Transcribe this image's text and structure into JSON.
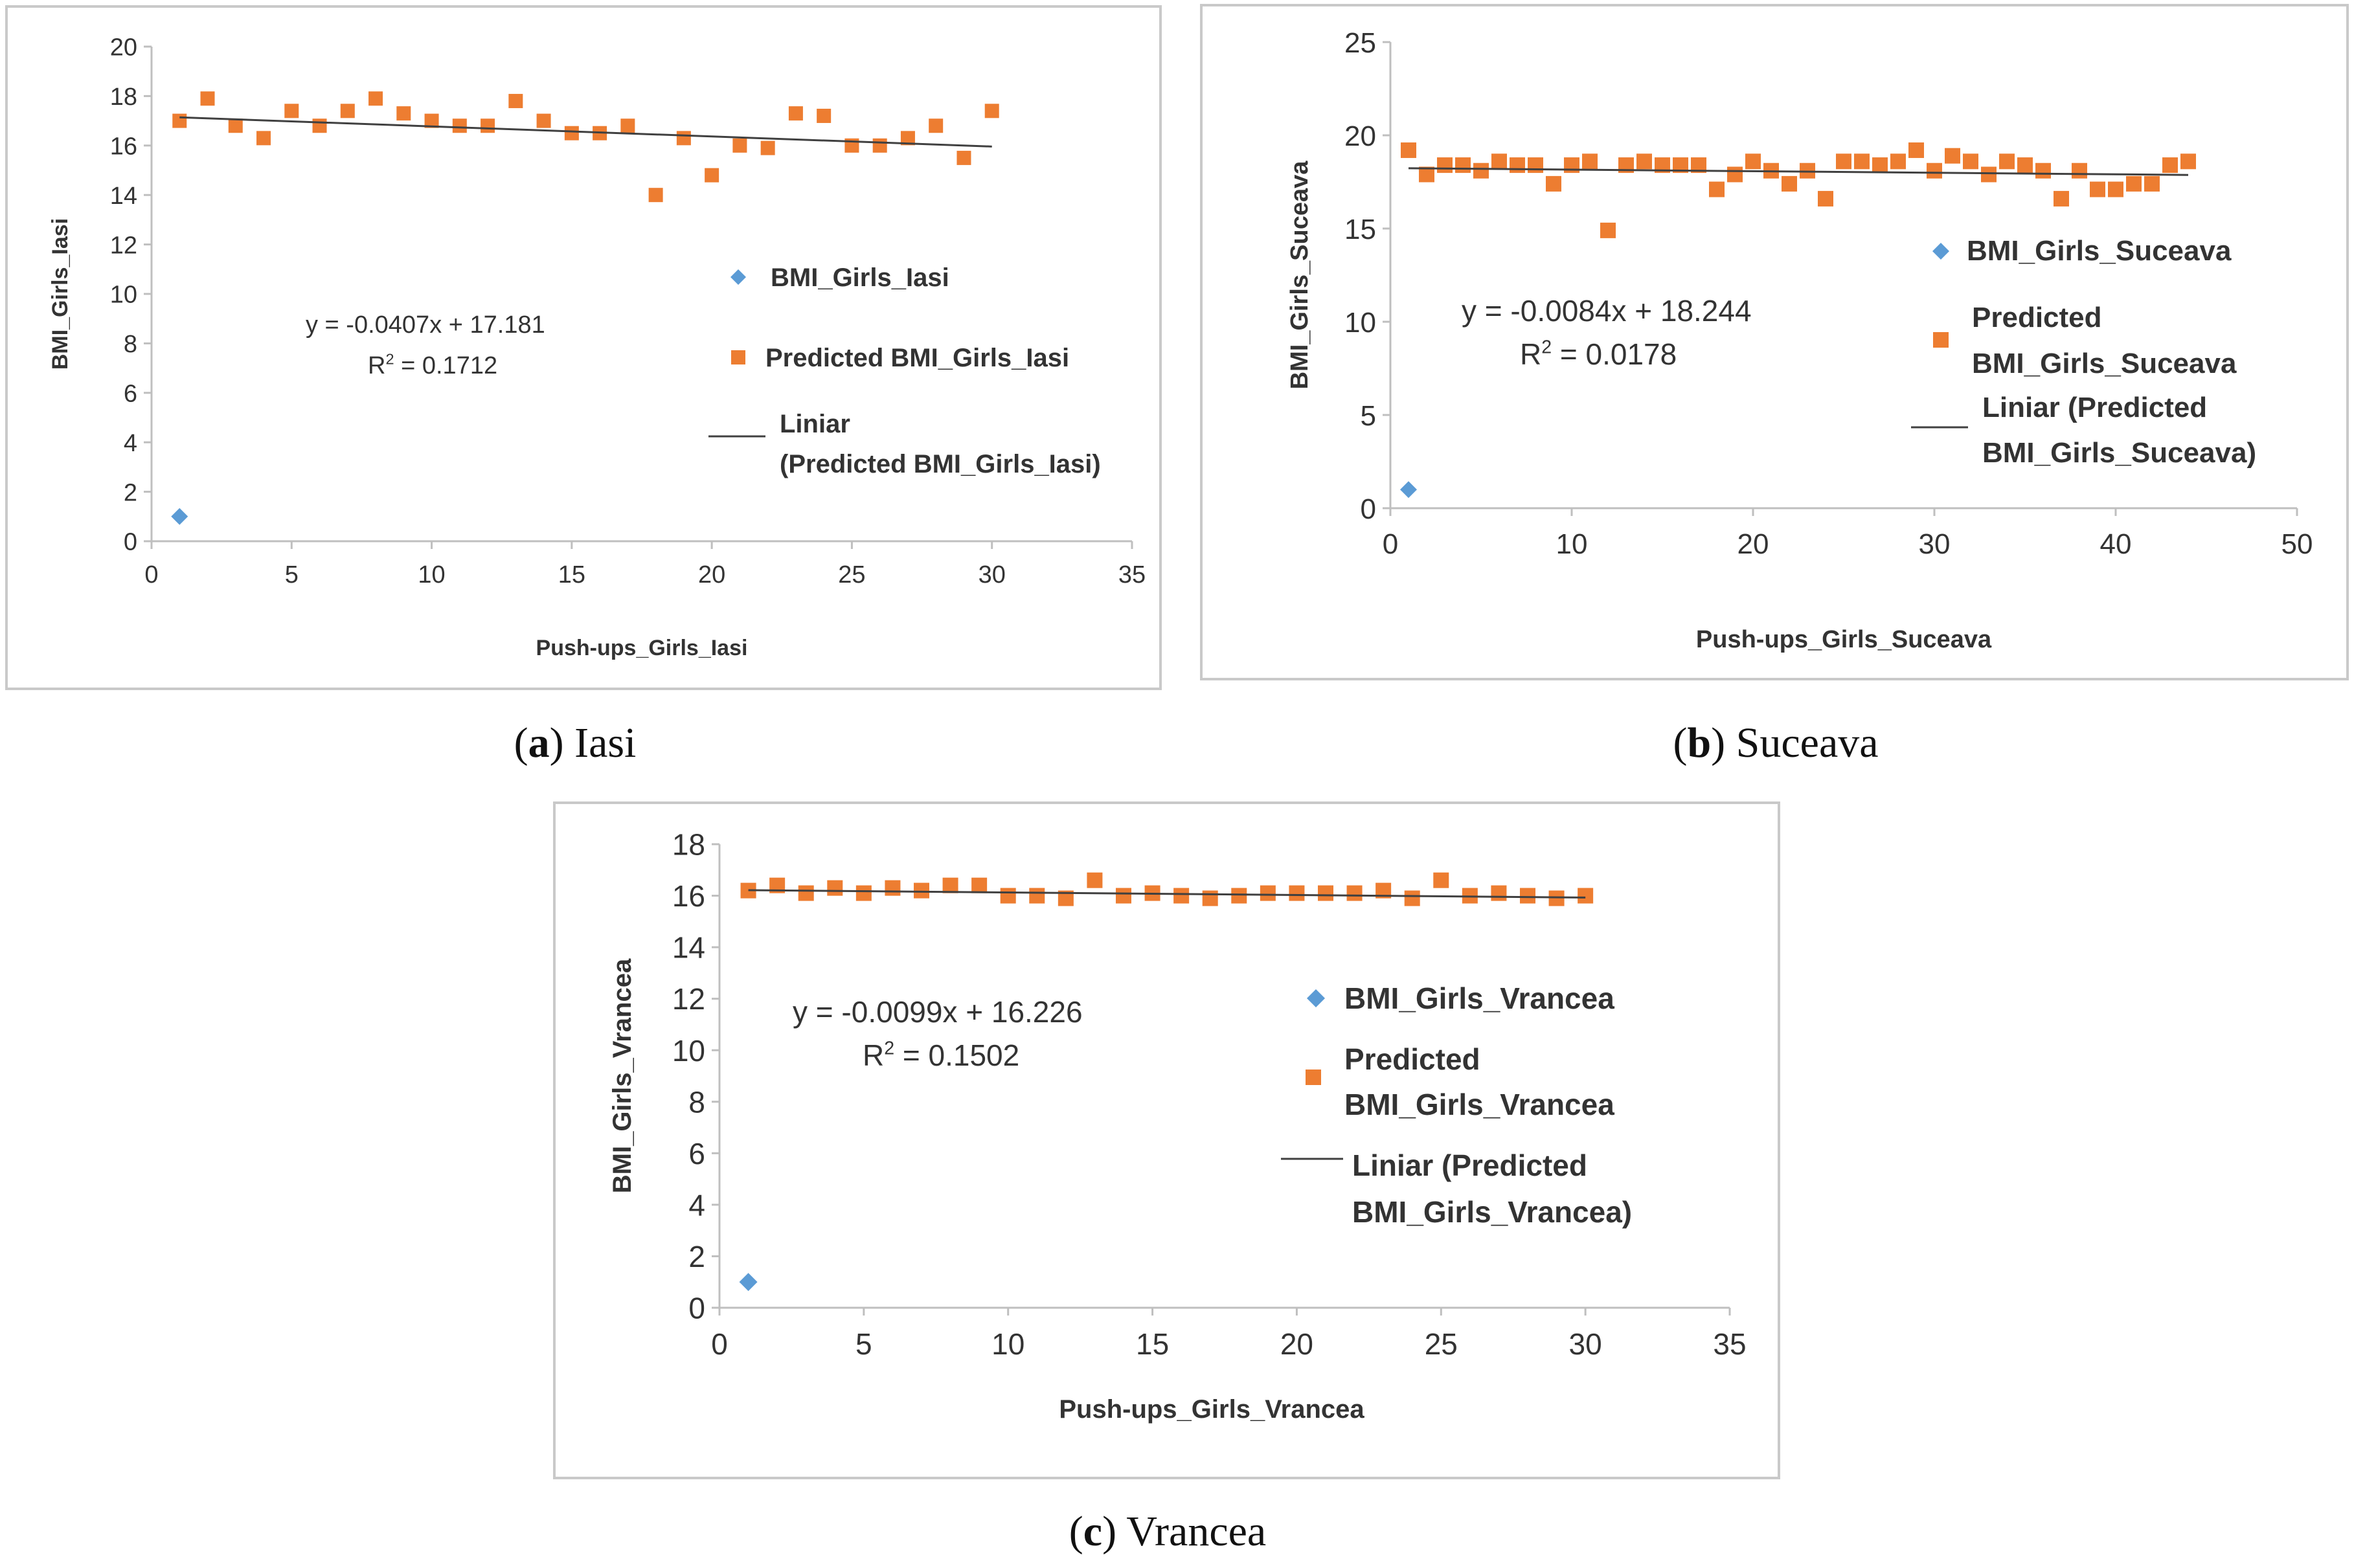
{
  "chart_data": [
    {
      "type": "scatter",
      "panel_id": "a",
      "caption_letter": "a",
      "caption_text": "Iasi",
      "xlabel": "Push-ups_Girls_Iasi",
      "ylabel": "BMI_Girls_Iasi",
      "xlim": [
        0,
        35
      ],
      "ylim": [
        0,
        20
      ],
      "xticks": [
        0,
        5,
        10,
        15,
        20,
        25,
        30,
        35
      ],
      "yticks": [
        0,
        2,
        4,
        6,
        8,
        10,
        12,
        14,
        16,
        18,
        20
      ],
      "grid": false,
      "equation": "y = -0.0407x + 17.181",
      "r2": "R² = 0.1712",
      "legend": [
        "BMI_Girls_Iasi",
        "Predicted BMI_Girls_Iasi",
        "Liniar",
        "(Predicted BMI_Girls_Iasi)"
      ],
      "series": [
        {
          "name": "BMI_Girls_Iasi",
          "marker": "diamond",
          "color": "#5b9bd5",
          "points": [
            [
              1,
              1
            ]
          ]
        },
        {
          "name": "Predicted BMI_Girls_Iasi",
          "marker": "square",
          "color": "#ed7d31",
          "points": [
            [
              1,
              17
            ],
            [
              2,
              17.9
            ],
            [
              3,
              16.8
            ],
            [
              4,
              16.3
            ],
            [
              5,
              17.4
            ],
            [
              6,
              16.8
            ],
            [
              7,
              17.4
            ],
            [
              8,
              17.9
            ],
            [
              9,
              17.3
            ],
            [
              10,
              17
            ],
            [
              11,
              16.8
            ],
            [
              12,
              16.8
            ],
            [
              13,
              17.8
            ],
            [
              14,
              17
            ],
            [
              15,
              16.5
            ],
            [
              16,
              16.5
            ],
            [
              17,
              16.8
            ],
            [
              18,
              14
            ],
            [
              19,
              16.3
            ],
            [
              20,
              14.8
            ],
            [
              21,
              16
            ],
            [
              22,
              15.9
            ],
            [
              23,
              17.3
            ],
            [
              24,
              17.2
            ],
            [
              25,
              16
            ],
            [
              26,
              16
            ],
            [
              27,
              16.3
            ],
            [
              28,
              16.8
            ],
            [
              29,
              15.5
            ],
            [
              30,
              17.4
            ]
          ]
        },
        {
          "name": "Liniar (Predicted BMI_Girls_Iasi)",
          "marker": "line",
          "color": "#404040",
          "slope": -0.0407,
          "intercept": 17.181,
          "x_range": [
            1,
            30
          ]
        }
      ]
    },
    {
      "type": "scatter",
      "panel_id": "b",
      "caption_letter": "b",
      "caption_text": "Suceava",
      "xlabel": "Push-ups_Girls_Suceava",
      "ylabel": "BMI_Girls_Suceava",
      "xlim": [
        0,
        50
      ],
      "ylim": [
        0,
        25
      ],
      "xticks": [
        0,
        10,
        20,
        30,
        40,
        50
      ],
      "yticks": [
        0,
        5,
        10,
        15,
        20,
        25
      ],
      "grid": false,
      "equation": "y = -0.0084x + 18.244",
      "r2": "R² = 0.0178",
      "legend": [
        "BMI_Girls_Suceava",
        "Predicted",
        "BMI_Girls_Suceava",
        "Liniar (Predicted",
        "BMI_Girls_Suceava)"
      ],
      "series": [
        {
          "name": "BMI_Girls_Suceava",
          "marker": "diamond",
          "color": "#5b9bd5",
          "points": [
            [
              1,
              1
            ]
          ]
        },
        {
          "name": "Predicted BMI_Girls_Suceava",
          "marker": "square",
          "color": "#ed7d31",
          "points": [
            [
              1,
              19.2
            ],
            [
              2,
              17.9
            ],
            [
              3,
              18.4
            ],
            [
              4,
              18.4
            ],
            [
              5,
              18.1
            ],
            [
              6,
              18.6
            ],
            [
              7,
              18.4
            ],
            [
              8,
              18.4
            ],
            [
              9,
              17.4
            ],
            [
              10,
              18.4
            ],
            [
              11,
              18.6
            ],
            [
              12,
              14.9
            ],
            [
              13,
              18.4
            ],
            [
              14,
              18.6
            ],
            [
              15,
              18.4
            ],
            [
              16,
              18.4
            ],
            [
              17,
              18.4
            ],
            [
              18,
              17.1
            ],
            [
              19,
              17.9
            ],
            [
              20,
              18.6
            ],
            [
              21,
              18.1
            ],
            [
              22,
              17.4
            ],
            [
              23,
              18.1
            ],
            [
              24,
              16.6
            ],
            [
              25,
              18.6
            ],
            [
              26,
              18.6
            ],
            [
              27,
              18.4
            ],
            [
              28,
              18.6
            ],
            [
              29,
              19.2
            ],
            [
              30,
              18.1
            ],
            [
              31,
              18.9
            ],
            [
              32,
              18.6
            ],
            [
              33,
              17.9
            ],
            [
              34,
              18.6
            ],
            [
              35,
              18.4
            ],
            [
              36,
              18.1
            ],
            [
              37,
              16.6
            ],
            [
              38,
              18.1
            ],
            [
              39,
              17.1
            ],
            [
              40,
              17.1
            ],
            [
              41,
              17.4
            ],
            [
              42,
              17.4
            ],
            [
              43,
              18.4
            ],
            [
              44,
              18.6
            ]
          ]
        },
        {
          "name": "Liniar (Predicted BMI_Girls_Suceava)",
          "marker": "line",
          "color": "#404040",
          "slope": -0.0084,
          "intercept": 18.244,
          "x_range": [
            1,
            44
          ]
        }
      ]
    },
    {
      "type": "scatter",
      "panel_id": "c",
      "caption_letter": "c",
      "caption_text": "Vrancea",
      "xlabel": "Push-ups_Girls_Vrancea",
      "ylabel": "BMI_Girls_Vrancea",
      "xlim": [
        0,
        35
      ],
      "ylim": [
        0,
        18
      ],
      "xticks": [
        0,
        5,
        10,
        15,
        20,
        25,
        30,
        35
      ],
      "yticks": [
        0,
        2,
        4,
        6,
        8,
        10,
        12,
        14,
        16,
        18
      ],
      "grid": false,
      "equation": "y = -0.0099x + 16.226",
      "r2": "R² = 0.1502",
      "legend": [
        "BMI_Girls_Vrancea",
        "Predicted",
        "BMI_Girls_Vrancea",
        "Liniar (Predicted",
        "BMI_Girls_Vrancea)"
      ],
      "series": [
        {
          "name": "BMI_Girls_Vrancea",
          "marker": "diamond",
          "color": "#5b9bd5",
          "points": [
            [
              1,
              1
            ]
          ]
        },
        {
          "name": "Predicted BMI_Girls_Vrancea",
          "marker": "square",
          "color": "#ed7d31",
          "points": [
            [
              1,
              16.2
            ],
            [
              2,
              16.4
            ],
            [
              3,
              16.1
            ],
            [
              4,
              16.3
            ],
            [
              5,
              16.1
            ],
            [
              6,
              16.3
            ],
            [
              7,
              16.2
            ],
            [
              8,
              16.4
            ],
            [
              9,
              16.4
            ],
            [
              10,
              16
            ],
            [
              11,
              16
            ],
            [
              12,
              15.9
            ],
            [
              13,
              16.6
            ],
            [
              14,
              16
            ],
            [
              15,
              16.1
            ],
            [
              16,
              16
            ],
            [
              17,
              15.9
            ],
            [
              18,
              16
            ],
            [
              19,
              16.1
            ],
            [
              20,
              16.1
            ],
            [
              21,
              16.1
            ],
            [
              22,
              16.1
            ],
            [
              23,
              16.2
            ],
            [
              24,
              15.9
            ],
            [
              25,
              16.6
            ],
            [
              26,
              16
            ],
            [
              27,
              16.1
            ],
            [
              28,
              16
            ],
            [
              29,
              15.9
            ],
            [
              30,
              16
            ]
          ]
        },
        {
          "name": "Liniar (Predicted BMI_Girls_Vrancea)",
          "marker": "line",
          "color": "#404040",
          "slope": -0.0099,
          "intercept": 16.226,
          "x_range": [
            1,
            30
          ]
        }
      ]
    }
  ]
}
